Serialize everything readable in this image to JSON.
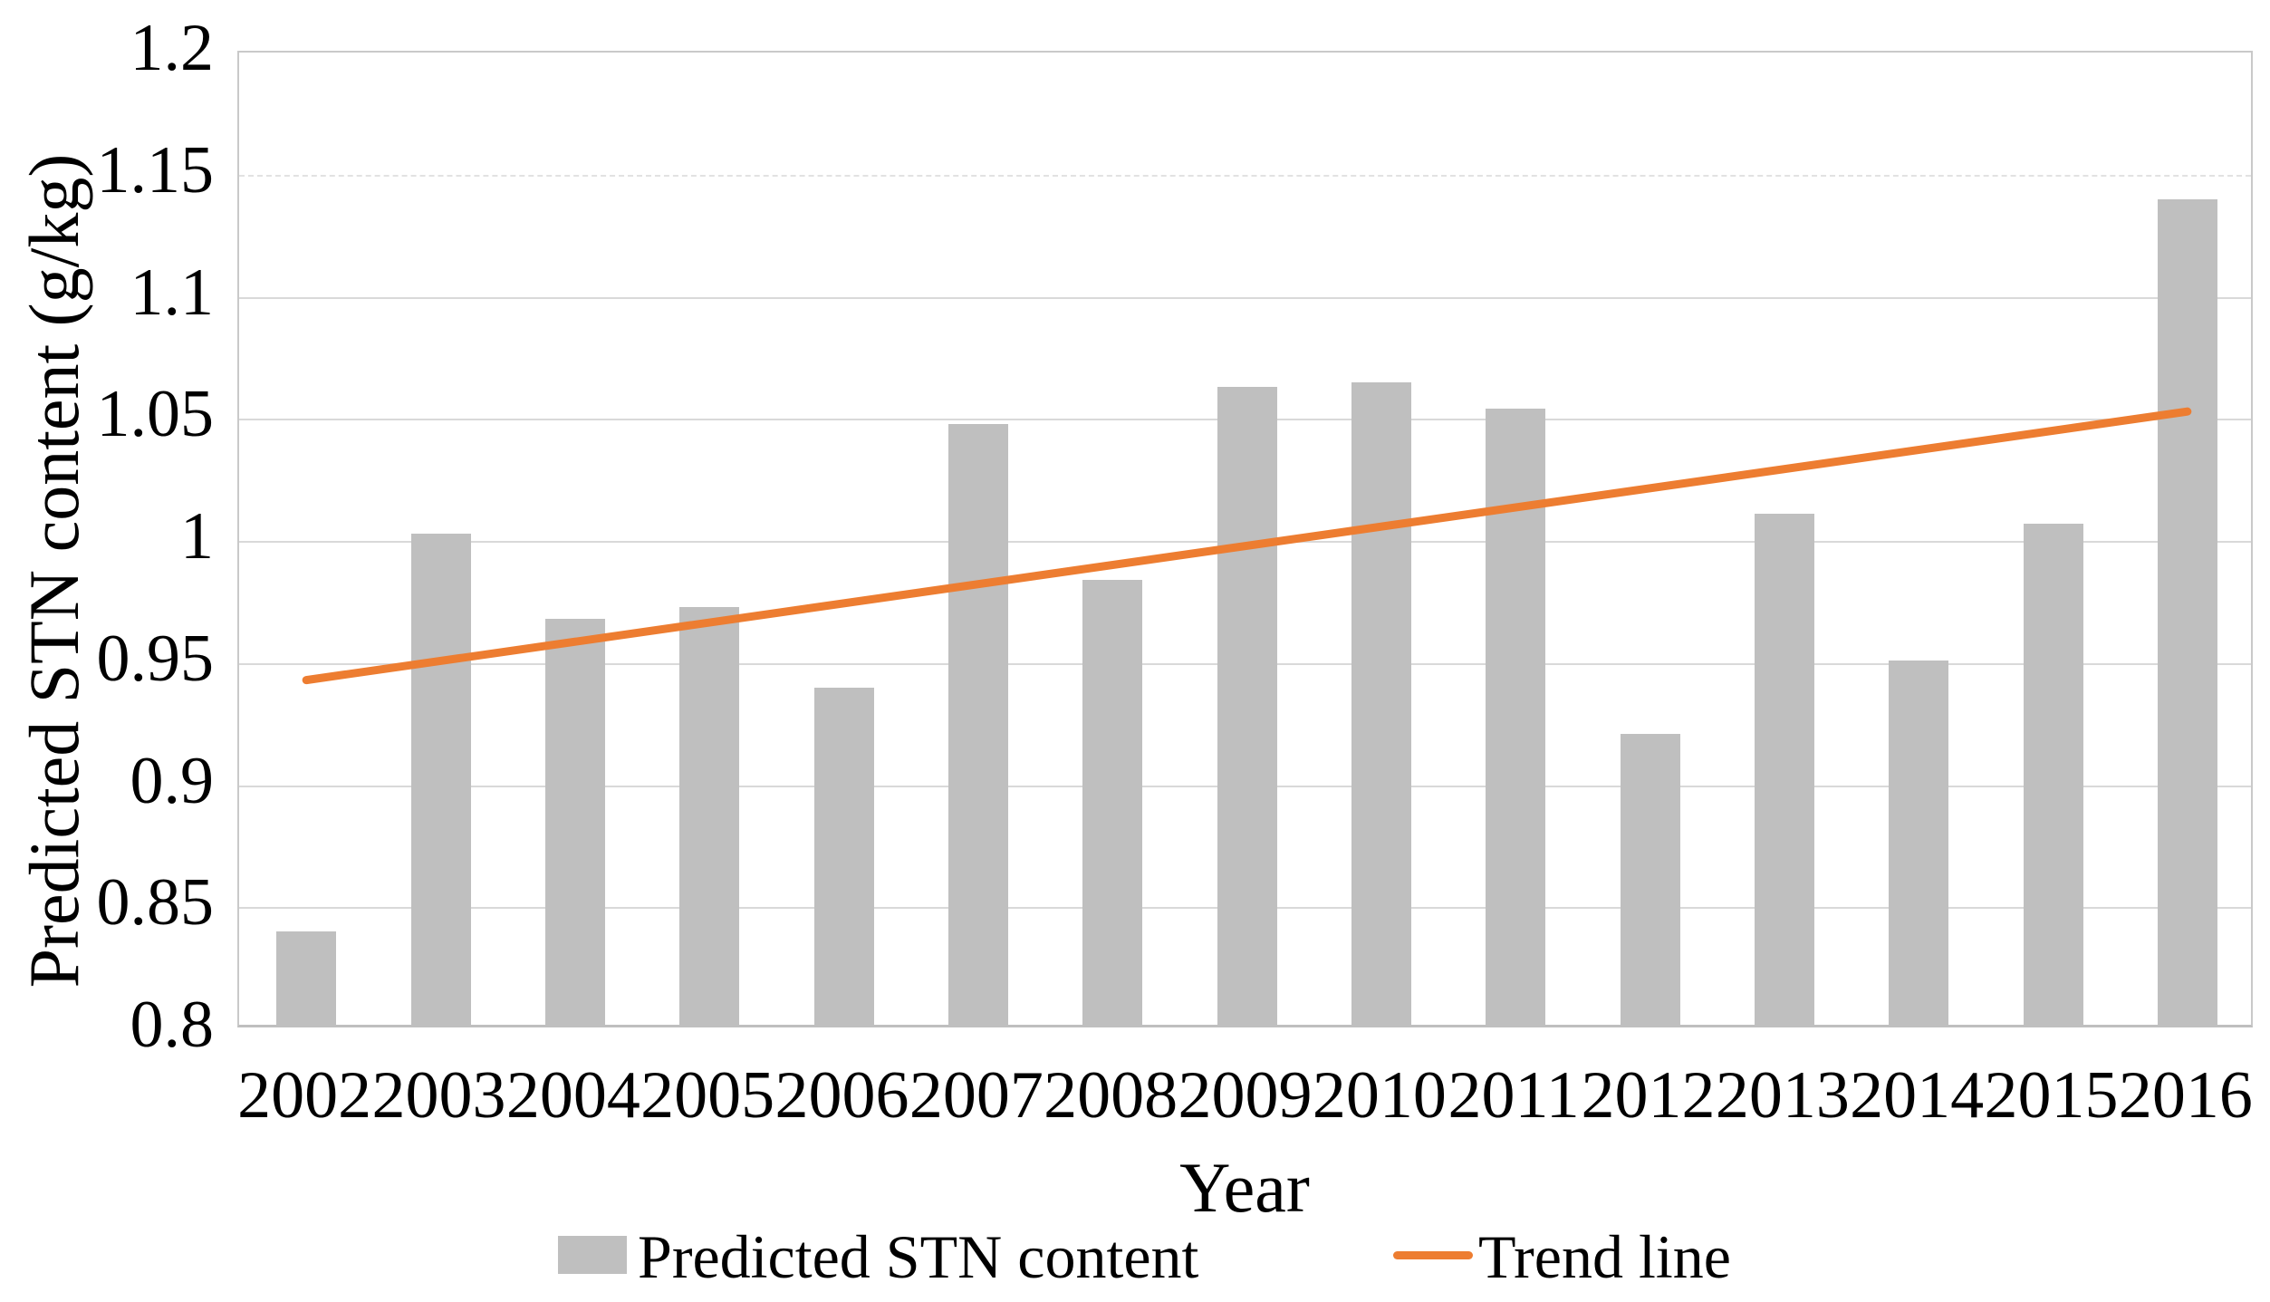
{
  "chart_data": {
    "type": "bar",
    "title": "",
    "xlabel": "Year",
    "ylabel": "Predicted STN content (g/kg)",
    "ylim": [
      0.8,
      1.2
    ],
    "ytick_step": 0.05,
    "yticks": [
      "1.2",
      "1.15",
      "1.1",
      "1.05",
      "1",
      "0.95",
      "0.9",
      "0.85",
      "0.8"
    ],
    "categories": [
      "2002",
      "2003",
      "2004",
      "2005",
      "2006",
      "2007",
      "2008",
      "2009",
      "2010",
      "2011",
      "2012",
      "2013",
      "2014",
      "2015",
      "2016"
    ],
    "series": [
      {
        "name": "Predicted STN content",
        "values": [
          0.84,
          1.003,
          0.968,
          0.973,
          0.94,
          1.048,
          0.984,
          1.063,
          1.065,
          1.054,
          0.921,
          1.011,
          0.951,
          1.007,
          1.14
        ]
      }
    ],
    "trend": {
      "name": "Trend line",
      "start_value": 0.943,
      "end_value": 1.053
    },
    "grid": "horizontal-major",
    "legend_position": "bottom"
  },
  "axes": {
    "x_title": "Year",
    "y_title": "Predicted STN content (g/kg)"
  },
  "legend": {
    "series_label": "Predicted STN content",
    "trend_label": "Trend line"
  },
  "colors": {
    "bar": "#BFBFBF",
    "trend": "#ED7D31",
    "gridline": "#D9D9D9",
    "axis_border": "#BFBFBF",
    "text": "#000000",
    "background": "#FFFFFF"
  }
}
